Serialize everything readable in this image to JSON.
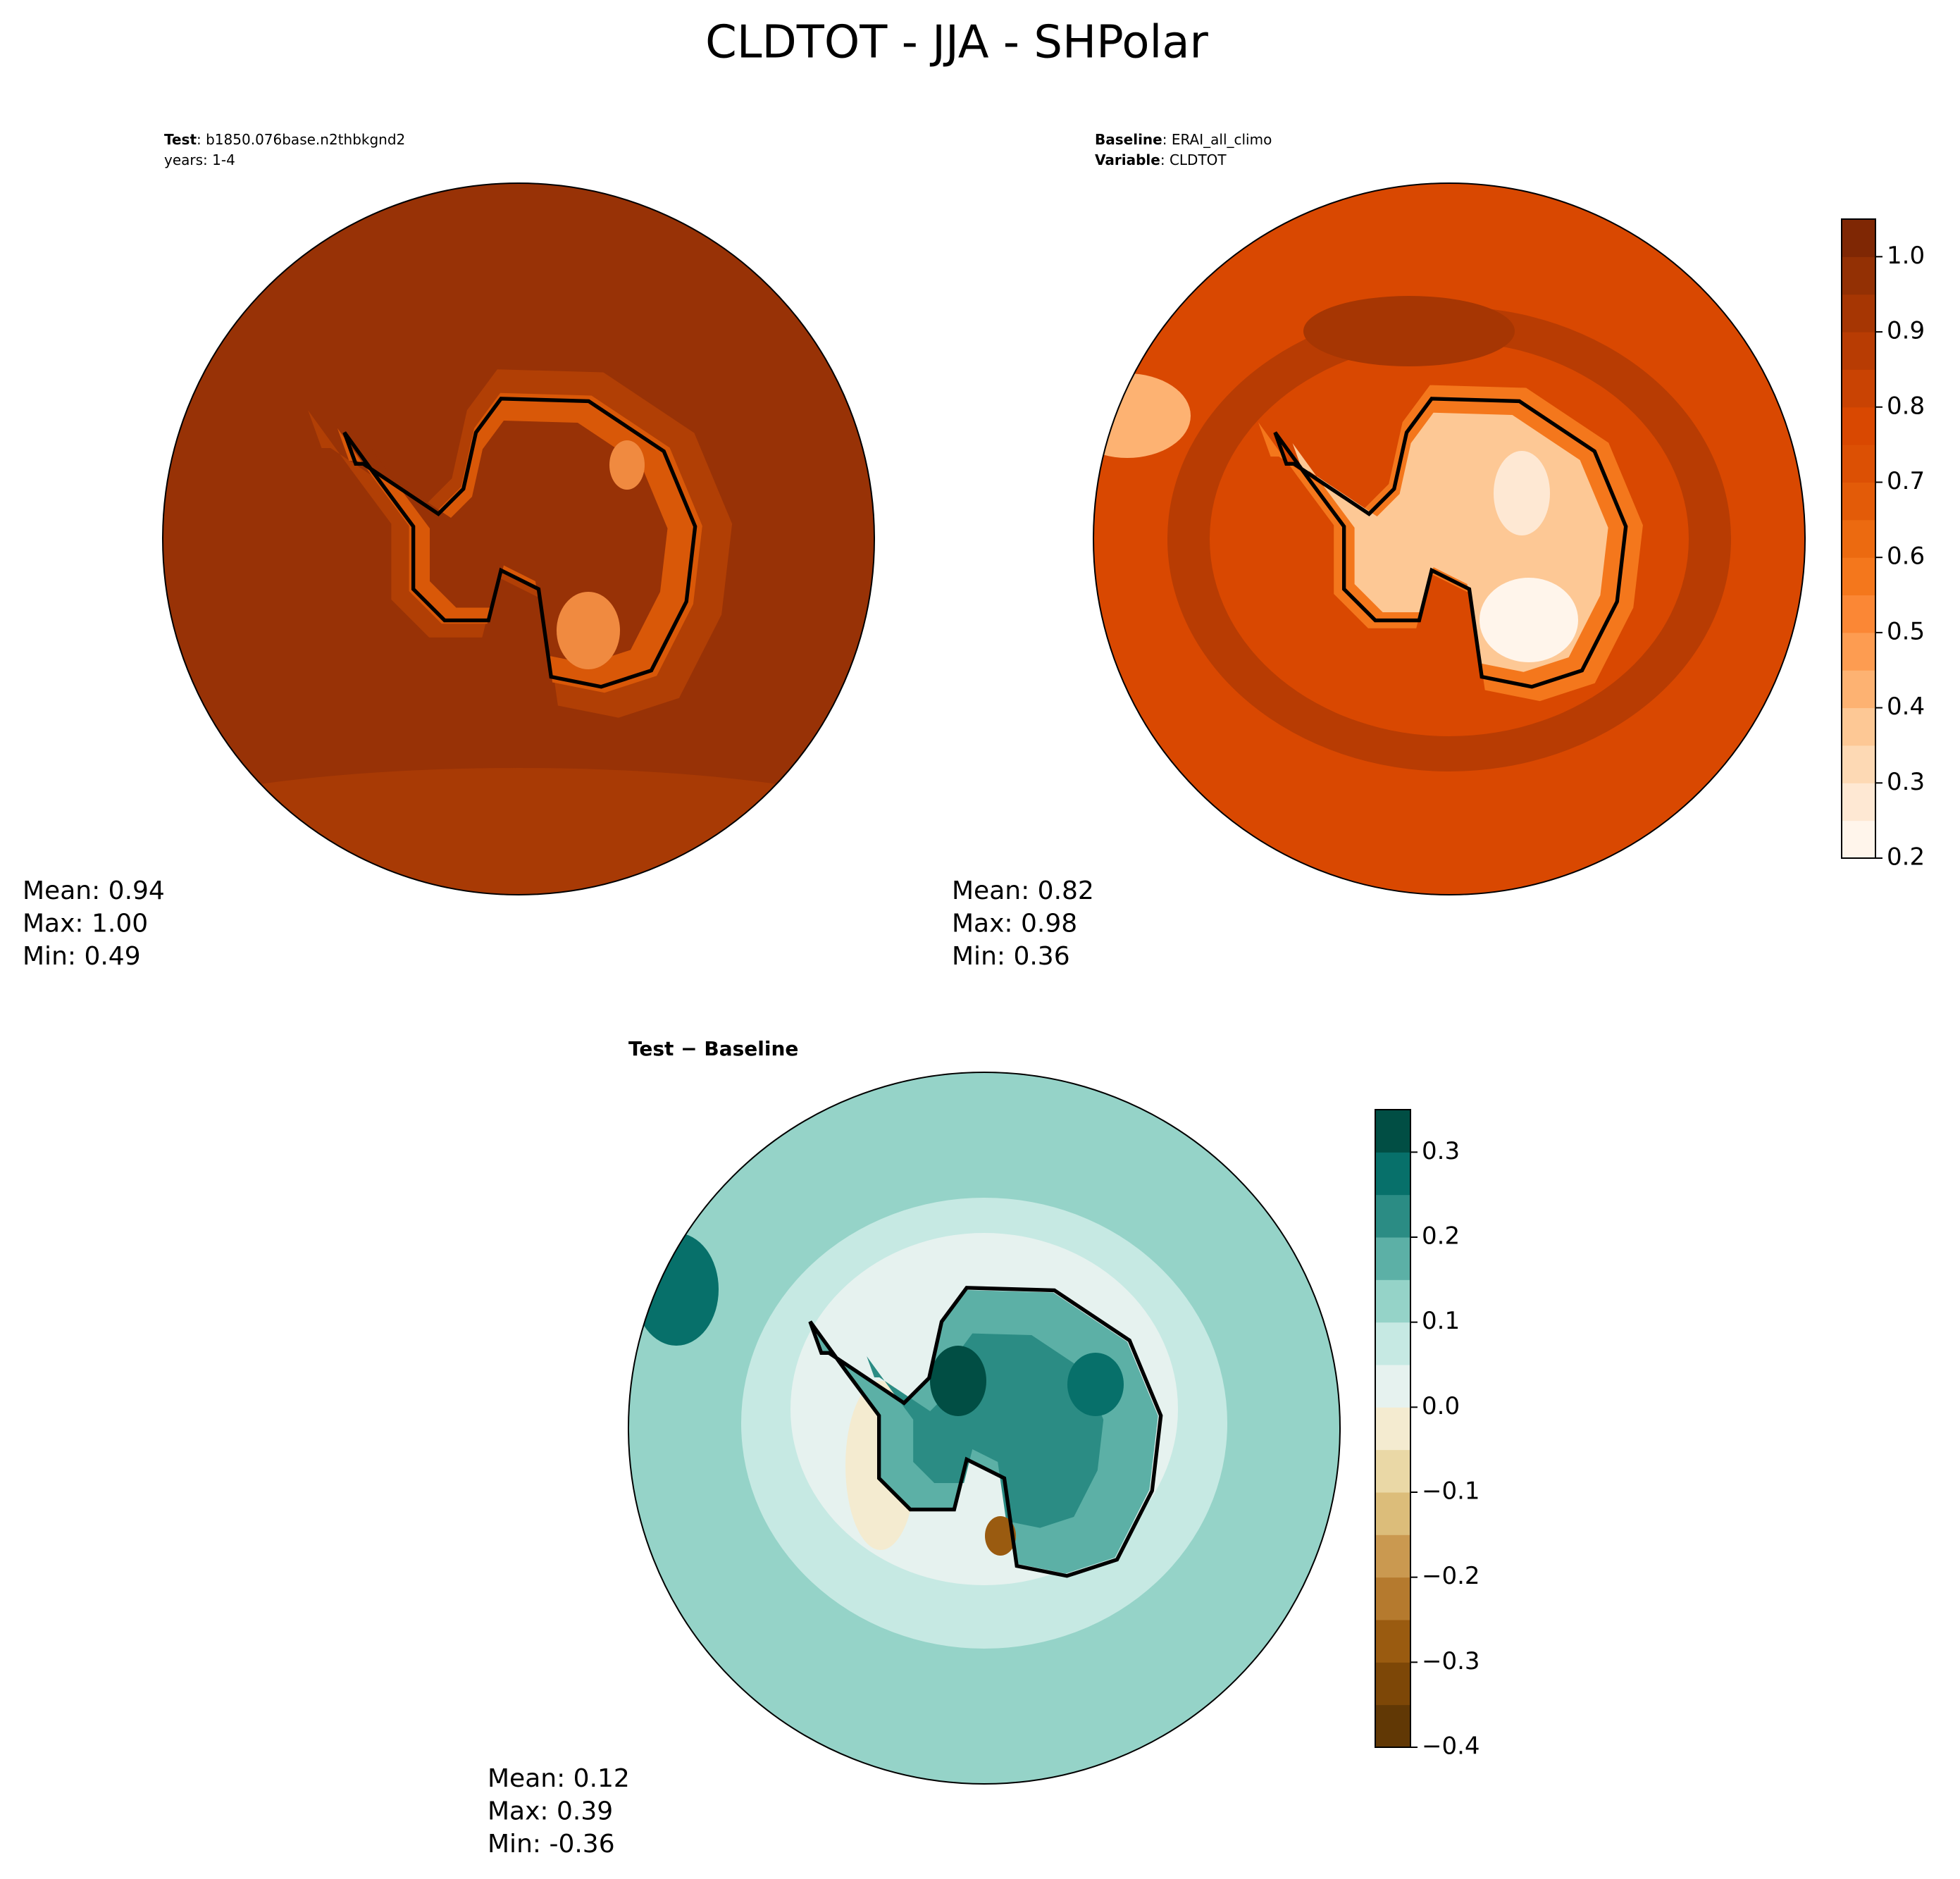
{
  "chart_data": {
    "type": "contourf-map",
    "title": "CLDTOT - JJA - SHPolar",
    "panels": [
      {
        "header": [
          {
            "bold": "Test",
            "text": ": b1850.076base.n2thbkgnd2"
          },
          {
            "text": "years: 1-4"
          }
        ],
        "stats": [
          "Mean:  0.94",
          "Max:  1.00",
          "Min:  0.49"
        ]
      },
      {
        "header": [
          {
            "bold": "Baseline",
            "text": ": ERAI_all_climo"
          },
          {
            "bold": "Variable",
            "text": ": CLDTOT"
          }
        ],
        "stats": [
          "Mean:  0.82",
          "Max:  0.98",
          "Min:  0.36"
        ]
      },
      {
        "header": [
          {
            "bold": "Test − Baseline"
          }
        ],
        "stats": [
          "Mean:  0.12",
          "Max:  0.39",
          "Min: -0.36"
        ]
      }
    ],
    "colorbars": [
      {
        "ylim": [
          0.2,
          1.05
        ],
        "yticks": [
          0.2,
          0.3,
          0.4,
          0.5,
          0.6,
          0.7,
          0.8,
          0.9,
          {
            "value": 1,
            "label": "1.0"
          }
        ],
        "levels": [
          0.2,
          0.25,
          0.3,
          0.35,
          0.4,
          0.45,
          0.5,
          0.55,
          0.6,
          0.65,
          0.7,
          0.75,
          0.8,
          0.85,
          0.9,
          0.95,
          1,
          1.05
        ],
        "colors": [
          "#fff5eb",
          "#fee8d3",
          "#fdd9b4",
          "#fdc895",
          "#fdb272",
          "#fd9c51",
          "#fb8735",
          "#f4771c",
          "#ec6a10",
          "#e35b08",
          "#dc5004",
          "#d94801",
          "#c94303",
          "#b83c03",
          "#a63603",
          "#933004",
          "#7f2704"
        ]
      },
      {
        "ylim": [
          -0.4,
          0.35
        ],
        "yticks": [
          {
            "value": -0.4,
            "label": "−0.4"
          },
          {
            "value": -0.3,
            "label": "−0.3"
          },
          {
            "value": -0.2,
            "label": "−0.2"
          },
          {
            "value": -0.1,
            "label": "−0.1"
          },
          {
            "value": 0,
            "label": "0.0"
          },
          0.1,
          0.2,
          0.3
        ],
        "levels": [
          -0.4,
          -0.35,
          -0.3,
          -0.25,
          -0.2,
          -0.15,
          -0.1,
          -0.05,
          0,
          0.05,
          0.1,
          0.15,
          0.2,
          0.25,
          0.3,
          0.35
        ],
        "colors": [
          "#613805",
          "#7d4707",
          "#9a5b10",
          "#b57a2e",
          "#ca9950",
          "#dcbd7a",
          "#ead8a6",
          "#f4ebd0",
          "#e6f2ef",
          "#c6e9e3",
          "#95d3c8",
          "#5cb0a6",
          "#2b8c84",
          "#07706a",
          "#014e44"
        ]
      }
    ]
  }
}
